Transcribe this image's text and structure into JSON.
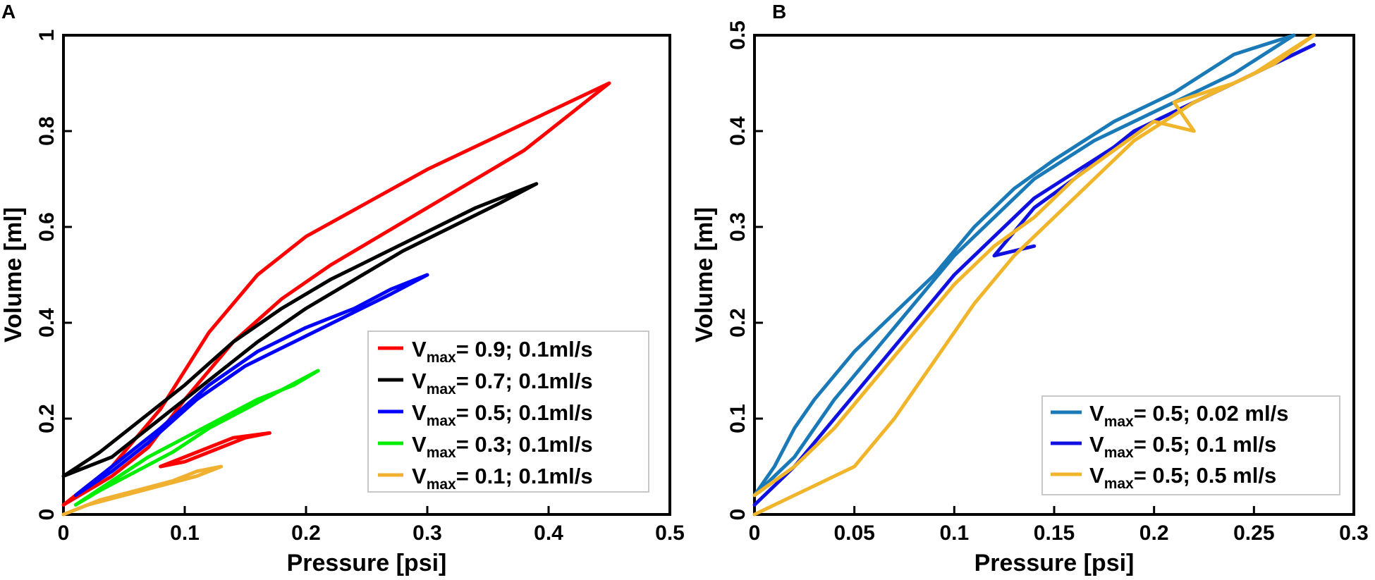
{
  "chart_data": [
    {
      "panel": "A",
      "type": "line",
      "xlabel": "Pressure [psi]",
      "ylabel": "Volume [ml]",
      "xlim": [
        0,
        0.5
      ],
      "ylim": [
        0,
        1
      ],
      "xticks": [
        0,
        0.1,
        0.2,
        0.3,
        0.4,
        0.5
      ],
      "yticks": [
        0,
        0.2,
        0.4,
        0.6,
        0.8,
        1
      ],
      "xtick_labels": [
        "0",
        "0.1",
        "0.2",
        "0.3",
        "0.4",
        "0.5"
      ],
      "ytick_labels": [
        "0",
        "0.2",
        "0.4",
        "0.6",
        "0.8",
        "1"
      ],
      "legend_position": "bottom-right",
      "series": [
        {
          "name": "Vmax= 0.9; 0.1ml/s",
          "legend": {
            "prefix": "V",
            "sub": "max",
            "suffix": "= 0.9; 0.1ml/s"
          },
          "color": "#ff0000",
          "points": [
            [
              0.0,
              0.02
            ],
            [
              0.04,
              0.1
            ],
            [
              0.08,
              0.22
            ],
            [
              0.12,
              0.38
            ],
            [
              0.16,
              0.5
            ],
            [
              0.2,
              0.58
            ],
            [
              0.25,
              0.65
            ],
            [
              0.3,
              0.72
            ],
            [
              0.35,
              0.78
            ],
            [
              0.4,
              0.84
            ],
            [
              0.45,
              0.9
            ],
            [
              0.42,
              0.84
            ],
            [
              0.38,
              0.76
            ],
            [
              0.34,
              0.7
            ],
            [
              0.3,
              0.64
            ],
            [
              0.26,
              0.58
            ],
            [
              0.22,
              0.52
            ],
            [
              0.18,
              0.45
            ],
            [
              0.14,
              0.36
            ],
            [
              0.1,
              0.24
            ],
            [
              0.07,
              0.14
            ],
            [
              0.04,
              0.08
            ],
            [
              0.0,
              0.02
            ]
          ]
        },
        {
          "name": "Vmax= 0.7; 0.1ml/s",
          "legend": {
            "prefix": "V",
            "sub": "max",
            "suffix": "= 0.7; 0.1ml/s"
          },
          "color": "#000000",
          "points": [
            [
              0.0,
              0.08
            ],
            [
              0.03,
              0.13
            ],
            [
              0.06,
              0.19
            ],
            [
              0.1,
              0.27
            ],
            [
              0.14,
              0.36
            ],
            [
              0.18,
              0.43
            ],
            [
              0.22,
              0.49
            ],
            [
              0.26,
              0.54
            ],
            [
              0.3,
              0.59
            ],
            [
              0.34,
              0.64
            ],
            [
              0.39,
              0.69
            ],
            [
              0.36,
              0.65
            ],
            [
              0.32,
              0.6
            ],
            [
              0.28,
              0.55
            ],
            [
              0.24,
              0.49
            ],
            [
              0.2,
              0.43
            ],
            [
              0.16,
              0.36
            ],
            [
              0.12,
              0.28
            ],
            [
              0.08,
              0.2
            ],
            [
              0.04,
              0.12
            ],
            [
              0.0,
              0.08
            ]
          ]
        },
        {
          "name": "Vmax= 0.5; 0.1ml/s",
          "legend": {
            "prefix": "V",
            "sub": "max",
            "suffix": "= 0.5; 0.1ml/s"
          },
          "color": "#0000ff",
          "points": [
            [
              0.01,
              0.04
            ],
            [
              0.04,
              0.1
            ],
            [
              0.08,
              0.18
            ],
            [
              0.12,
              0.27
            ],
            [
              0.16,
              0.34
            ],
            [
              0.2,
              0.39
            ],
            [
              0.24,
              0.43
            ],
            [
              0.27,
              0.47
            ],
            [
              0.3,
              0.5
            ],
            [
              0.27,
              0.46
            ],
            [
              0.23,
              0.41
            ],
            [
              0.19,
              0.36
            ],
            [
              0.15,
              0.31
            ],
            [
              0.11,
              0.24
            ],
            [
              0.07,
              0.15
            ],
            [
              0.04,
              0.09
            ],
            [
              0.01,
              0.04
            ]
          ]
        },
        {
          "name": "Vmax= 0.3; 0.1ml/s",
          "legend": {
            "prefix": "V",
            "sub": "max",
            "suffix": "= 0.3; 0.1ml/s"
          },
          "color": "#00ee00",
          "points": [
            [
              0.01,
              0.02
            ],
            [
              0.04,
              0.07
            ],
            [
              0.07,
              0.12
            ],
            [
              0.1,
              0.16
            ],
            [
              0.13,
              0.2
            ],
            [
              0.16,
              0.24
            ],
            [
              0.19,
              0.27
            ],
            [
              0.21,
              0.3
            ],
            [
              0.18,
              0.26
            ],
            [
              0.15,
              0.22
            ],
            [
              0.12,
              0.18
            ],
            [
              0.09,
              0.13
            ],
            [
              0.06,
              0.09
            ],
            [
              0.03,
              0.05
            ],
            [
              0.01,
              0.02
            ]
          ]
        },
        {
          "name": "Vmax= 0.1; 0.1ml/s",
          "legend": {
            "prefix": "V",
            "sub": "max",
            "suffix": "= 0.1; 0.1ml/s"
          },
          "color": "#f0b030",
          "points": [
            [
              0.0,
              0.0
            ],
            [
              0.03,
              0.03
            ],
            [
              0.06,
              0.05
            ],
            [
              0.09,
              0.07
            ],
            [
              0.11,
              0.09
            ],
            [
              0.13,
              0.1
            ],
            [
              0.11,
              0.08
            ],
            [
              0.08,
              0.06
            ],
            [
              0.05,
              0.04
            ],
            [
              0.02,
              0.02
            ],
            [
              0.0,
              0.0
            ]
          ]
        },
        {
          "name": "red low loop",
          "legend": null,
          "color": "#ff0000",
          "points": [
            [
              0.08,
              0.1
            ],
            [
              0.11,
              0.13
            ],
            [
              0.14,
              0.16
            ],
            [
              0.17,
              0.17
            ],
            [
              0.15,
              0.16
            ],
            [
              0.13,
              0.14
            ],
            [
              0.1,
              0.11
            ],
            [
              0.08,
              0.1
            ]
          ]
        }
      ]
    },
    {
      "panel": "B",
      "type": "line",
      "xlabel": "Pressure [psi]",
      "ylabel": "Volume [ml]",
      "xlim": [
        0,
        0.3
      ],
      "ylim": [
        0,
        0.5
      ],
      "xticks": [
        0,
        0.05,
        0.1,
        0.15,
        0.2,
        0.25,
        0.3
      ],
      "yticks": [
        0,
        0.1,
        0.2,
        0.3,
        0.4,
        0.5
      ],
      "xtick_labels": [
        "0",
        "0.05",
        "0.1",
        "0.15",
        "0.2",
        "0.25",
        "0.3"
      ],
      "ytick_labels": [
        "0",
        "0.1",
        "0.2",
        "0.3",
        "0.4",
        "0.5"
      ],
      "legend_position": "bottom-right",
      "series": [
        {
          "name": "Vmax= 0.5; 0.02 ml/s",
          "legend": {
            "prefix": "V",
            "sub": "max",
            "suffix": "= 0.5; 0.02 ml/s"
          },
          "color": "#1a7ab8",
          "points": [
            [
              0.0,
              0.02
            ],
            [
              0.01,
              0.05
            ],
            [
              0.02,
              0.09
            ],
            [
              0.03,
              0.12
            ],
            [
              0.05,
              0.17
            ],
            [
              0.07,
              0.21
            ],
            [
              0.09,
              0.25
            ],
            [
              0.11,
              0.3
            ],
            [
              0.13,
              0.34
            ],
            [
              0.15,
              0.37
            ],
            [
              0.18,
              0.41
            ],
            [
              0.21,
              0.44
            ],
            [
              0.24,
              0.48
            ],
            [
              0.27,
              0.5
            ]
          ]
        },
        {
          "name": "Vmax= 0.5; 0.02 ml/s return",
          "legend": null,
          "color": "#1a7ab8",
          "points": [
            [
              0.27,
              0.5
            ],
            [
              0.24,
              0.46
            ],
            [
              0.2,
              0.42
            ],
            [
              0.17,
              0.39
            ],
            [
              0.14,
              0.35
            ],
            [
              0.12,
              0.31
            ],
            [
              0.1,
              0.27
            ],
            [
              0.08,
              0.22
            ],
            [
              0.06,
              0.17
            ],
            [
              0.04,
              0.12
            ],
            [
              0.02,
              0.06
            ],
            [
              0.0,
              0.02
            ]
          ]
        },
        {
          "name": "Vmax= 0.5; 0.1 ml/s",
          "legend": {
            "prefix": "V",
            "sub": "max",
            "suffix": "=  0.5; 0.1 ml/s"
          },
          "color": "#1010e0",
          "points": [
            [
              0.0,
              0.01
            ],
            [
              0.02,
              0.05
            ],
            [
              0.04,
              0.1
            ],
            [
              0.06,
              0.15
            ],
            [
              0.08,
              0.2
            ],
            [
              0.1,
              0.25
            ],
            [
              0.12,
              0.29
            ],
            [
              0.14,
              0.33
            ],
            [
              0.17,
              0.37
            ],
            [
              0.2,
              0.41
            ],
            [
              0.23,
              0.44
            ],
            [
              0.26,
              0.47
            ],
            [
              0.28,
              0.49
            ]
          ]
        },
        {
          "name": "Vmax= 0.5; 0.1 ml/s return",
          "legend": null,
          "color": "#1010e0",
          "points": [
            [
              0.28,
              0.49
            ],
            [
              0.25,
              0.46
            ],
            [
              0.22,
              0.43
            ],
            [
              0.19,
              0.4
            ],
            [
              0.16,
              0.35
            ],
            [
              0.14,
              0.32
            ],
            [
              0.12,
              0.27
            ],
            [
              0.14,
              0.28
            ]
          ]
        },
        {
          "name": "Vmax= 0.5; 0.5 ml/s",
          "legend": {
            "prefix": "V",
            "sub": "max",
            "suffix": "=  0.5; 0.5 ml/s"
          },
          "color": "#f0b52a",
          "points": [
            [
              0.0,
              0.02
            ],
            [
              0.02,
              0.05
            ],
            [
              0.04,
              0.09
            ],
            [
              0.06,
              0.14
            ],
            [
              0.08,
              0.19
            ],
            [
              0.1,
              0.24
            ],
            [
              0.12,
              0.28
            ],
            [
              0.14,
              0.31
            ],
            [
              0.16,
              0.35
            ],
            [
              0.18,
              0.38
            ],
            [
              0.2,
              0.41
            ],
            [
              0.22,
              0.4
            ],
            [
              0.21,
              0.43
            ],
            [
              0.24,
              0.45
            ],
            [
              0.26,
              0.47
            ],
            [
              0.28,
              0.5
            ]
          ]
        },
        {
          "name": "Vmax= 0.5; 0.5 ml/s return",
          "legend": null,
          "color": "#f0b52a",
          "points": [
            [
              0.28,
              0.5
            ],
            [
              0.25,
              0.46
            ],
            [
              0.22,
              0.43
            ],
            [
              0.19,
              0.39
            ],
            [
              0.16,
              0.33
            ],
            [
              0.13,
              0.27
            ],
            [
              0.11,
              0.22
            ],
            [
              0.09,
              0.16
            ],
            [
              0.07,
              0.1
            ],
            [
              0.05,
              0.05
            ],
            [
              0.02,
              0.02
            ],
            [
              0.0,
              0.0
            ]
          ]
        }
      ]
    }
  ],
  "panels": {
    "a": {
      "label": "A"
    },
    "b": {
      "label": "B"
    }
  }
}
